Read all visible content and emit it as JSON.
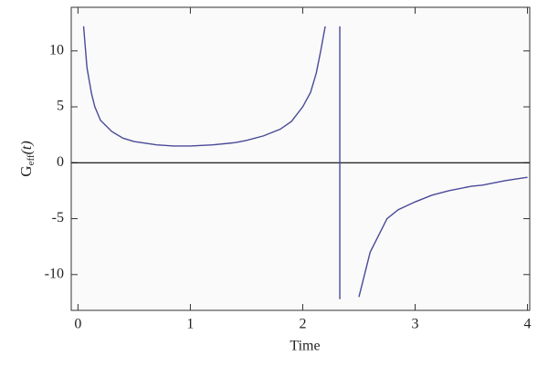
{
  "chart_data": {
    "type": "line",
    "xlabel": "Time",
    "ylabel": {
      "base": "G",
      "sub": "eff",
      "arg": "(t)"
    },
    "x": [
      0.05,
      0.08,
      0.12,
      0.15,
      0.2,
      0.3,
      0.4,
      0.5,
      0.7,
      0.85,
      1.0,
      1.2,
      1.4,
      1.5,
      1.65,
      1.8,
      1.9,
      2.0,
      2.07,
      2.12,
      2.16,
      2.2,
      2.26,
      2.33,
      2.33,
      2.42,
      2.5,
      2.55,
      2.6,
      2.7,
      2.75,
      2.85,
      3.0,
      3.15,
      3.3,
      3.5,
      3.6,
      3.8,
      4.0
    ],
    "series": [
      {
        "color": "#4a4a99",
        "values": [
          12.2,
          8.5,
          6.2,
          5.0,
          3.8,
          2.8,
          2.2,
          1.9,
          1.6,
          1.5,
          1.5,
          1.6,
          1.8,
          2.0,
          2.4,
          3.0,
          3.7,
          5.0,
          6.3,
          8.0,
          10.0,
          12.2,
          null,
          12.2,
          -12.2,
          null,
          -12.0,
          -10.0,
          -8.0,
          -6.0,
          -5.0,
          -4.2,
          -3.5,
          -2.9,
          -2.5,
          -2.1,
          -2.0,
          -1.6,
          -1.3
        ]
      }
    ],
    "xlim": [
      -0.06,
      4.02
    ],
    "ylim": [
      -13.2,
      13.9
    ],
    "xticks": [
      0,
      1,
      2,
      3,
      4
    ],
    "yticks": [
      -10,
      -5,
      0,
      5,
      10
    ]
  }
}
